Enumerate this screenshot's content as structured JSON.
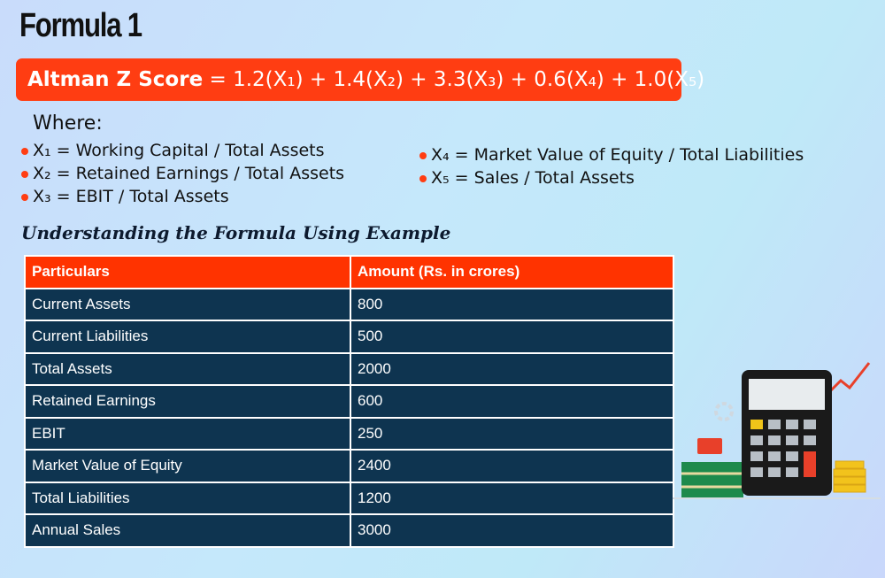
{
  "header": {
    "title": "Formula 1"
  },
  "formula": {
    "label": "Altman Z Score",
    "expression": "= 1.2(X₁) + 1.4(X₂) + 3.3(X₃) + 0.6(X₄) + 1.0(X₅)"
  },
  "where": {
    "label": "Where:",
    "left": [
      "X₁ = Working Capital / Total Assets",
      "X₂ = Retained Earnings / Total Assets",
      "X₃ = EBIT / Total Assets"
    ],
    "right": [
      "X₄ = Market Value of Equity / Total Liabilities",
      "X₅ = Sales / Total Assets"
    ]
  },
  "section": {
    "title": "Understanding the Formula Using Example"
  },
  "table": {
    "columns": [
      "Particulars",
      "Amount (Rs. in crores)"
    ],
    "rows": [
      [
        "Current Assets",
        800
      ],
      [
        "Current Liabilities",
        500
      ],
      [
        "Total Assets",
        2000
      ],
      [
        "Retained Earnings",
        600
      ],
      [
        "EBIT",
        250
      ],
      [
        "Market Value of Equity",
        2400
      ],
      [
        "Total Liabilities",
        1200
      ],
      [
        "Annual Sales",
        3000
      ]
    ]
  }
}
